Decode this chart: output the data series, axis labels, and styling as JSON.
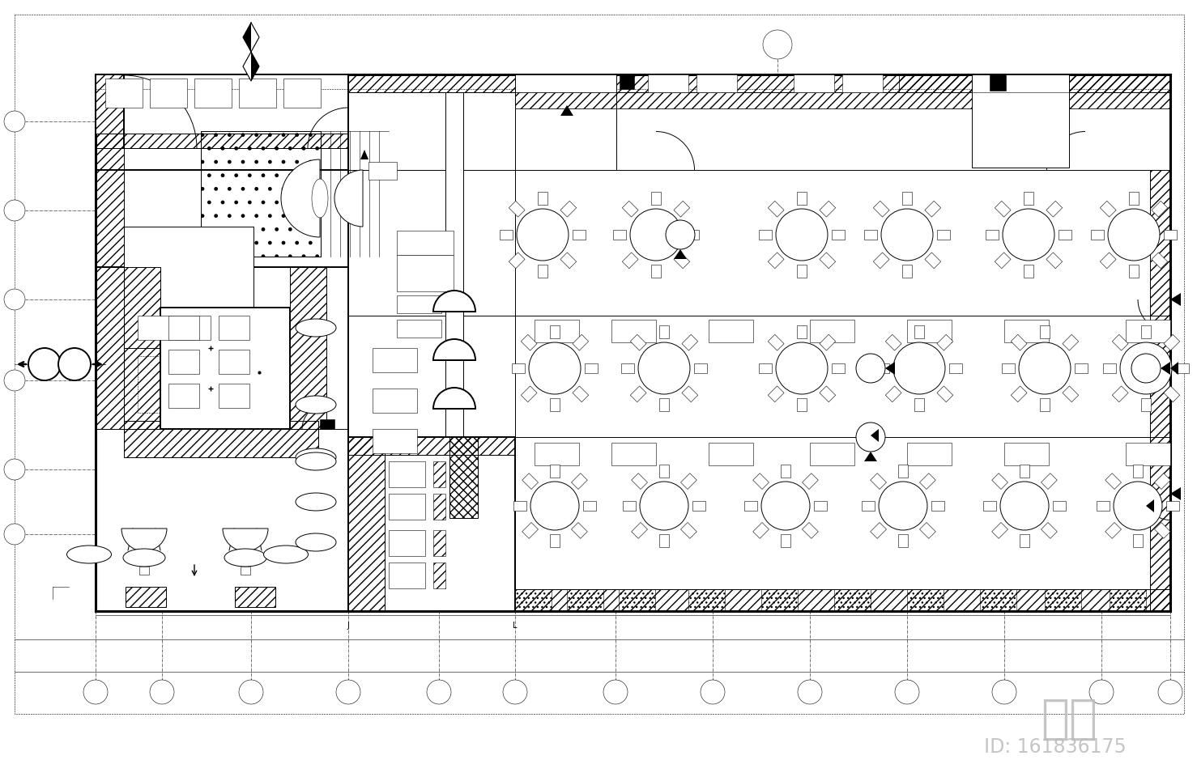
{
  "bg_color": "#ffffff",
  "lc": "#000000",
  "fig_width": 14.78,
  "fig_height": 9.6,
  "dpi": 100,
  "watermark": "知本",
  "watermark_id": "ID: 161836175"
}
